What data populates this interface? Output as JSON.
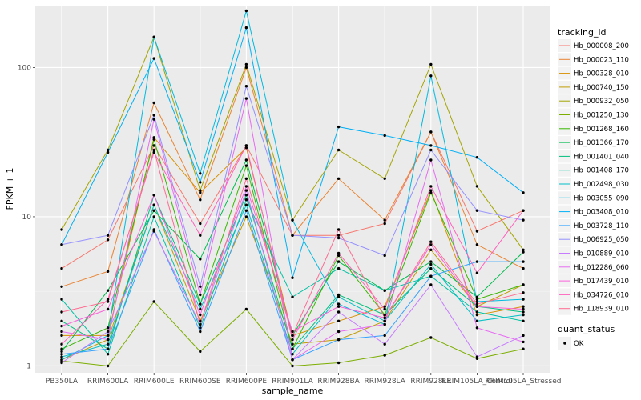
{
  "chart_data": {
    "type": "line",
    "xlabel": "sample_name",
    "ylabel": "FPKM + 1",
    "y_scale": "log10",
    "ylim": [
      0.9,
      260
    ],
    "y_ticks": [
      1,
      10,
      100
    ],
    "y_tick_labels": [
      "1",
      "10",
      "100"
    ],
    "grid": true,
    "background": "#ebebeb",
    "legend_placement": "right",
    "categories": [
      "PB350LA",
      "RRIM600LA",
      "RRIM600LE",
      "RRIM600SE",
      "RRIM600PE",
      "RRIM901LA",
      "RRIM928BA",
      "RRIM928LA",
      "RRIM928LE",
      "RRIM105LA_Control",
      "RRIM105LA_Stressed"
    ],
    "legend": {
      "title": "tracking_id",
      "items": [
        "Hb_000008_200",
        "Hb_000023_110",
        "Hb_000328_010",
        "Hb_000740_150",
        "Hb_000932_050",
        "Hb_001250_130",
        "Hb_001268_160",
        "Hb_001366_170",
        "Hb_001401_040",
        "Hb_001408_170",
        "Hb_002498_030",
        "Hb_003055_090",
        "Hb_003408_010",
        "Hb_003728_110",
        "Hb_006925_050",
        "Hb_010889_010",
        "Hb_012286_060",
        "Hb_017439_010",
        "Hb_034726_010",
        "Hb_118939_010"
      ]
    },
    "shape_legend": {
      "title": "quant_status",
      "items": [
        "OK"
      ]
    },
    "series": [
      {
        "name": "Hb_000008_200",
        "color": "#F8766D",
        "values": [
          4.5,
          7.0,
          30,
          9.0,
          30,
          7.5,
          7.5,
          9.0,
          37,
          8.0,
          11
        ]
      },
      {
        "name": "Hb_000023_110",
        "color": "#EA8331",
        "values": [
          3.4,
          4.3,
          58,
          13,
          100,
          7.5,
          18,
          9.5,
          37,
          6.5,
          4.5
        ]
      },
      {
        "name": "Hb_000328_010",
        "color": "#D89000",
        "values": [
          1.6,
          1.6,
          34,
          14.5,
          29,
          1.6,
          2.0,
          2.5,
          15,
          2.2,
          2.5
        ]
      },
      {
        "name": "Hb_000740_150",
        "color": "#C09B00",
        "values": [
          1.1,
          1.5,
          12,
          2.0,
          10,
          1.4,
          1.5,
          2.0,
          6.0,
          2.5,
          3.5
        ]
      },
      {
        "name": "Hb_000932_050",
        "color": "#A3A500",
        "values": [
          8.2,
          28,
          160,
          15,
          105,
          9.5,
          28,
          18,
          105,
          16,
          6.0
        ]
      },
      {
        "name": "Hb_001250_130",
        "color": "#7CAE00",
        "values": [
          1.08,
          1.0,
          2.7,
          1.25,
          2.4,
          1.0,
          1.05,
          1.18,
          1.55,
          1.12,
          1.3
        ]
      },
      {
        "name": "Hb_001268_160",
        "color": "#39B600",
        "values": [
          1.3,
          1.8,
          33,
          2.6,
          22,
          1.3,
          5.5,
          2.2,
          14.5,
          2.8,
          3.5
        ]
      },
      {
        "name": "Hb_001366_170",
        "color": "#00BB4E",
        "values": [
          1.25,
          3.2,
          11,
          5.2,
          24,
          1.6,
          5.0,
          3.2,
          5.0,
          2.9,
          5.8
        ]
      },
      {
        "name": "Hb_001401_040",
        "color": "#00BF7D",
        "values": [
          2.0,
          1.3,
          14,
          2.6,
          14,
          1.3,
          3.0,
          2.2,
          4.5,
          2.5,
          2.3
        ]
      },
      {
        "name": "Hb_001408_170",
        "color": "#00C1A3",
        "values": [
          2.8,
          1.2,
          10,
          1.8,
          13,
          2.9,
          4.5,
          3.2,
          4.0,
          2.3,
          2.0
        ]
      },
      {
        "name": "Hb_002498_030",
        "color": "#00BFC4",
        "values": [
          1.15,
          1.4,
          12,
          2.4,
          12,
          1.2,
          2.9,
          2.0,
          4.8,
          2.0,
          2.2
        ]
      },
      {
        "name": "Hb_003055_090",
        "color": "#00BAE0",
        "values": [
          1.1,
          1.6,
          160,
          19.5,
          240,
          9.5,
          2.6,
          1.9,
          88,
          2.7,
          2.8
        ]
      },
      {
        "name": "Hb_003408_010",
        "color": "#00B0F6",
        "values": [
          6.5,
          27,
          115,
          17,
          185,
          3.9,
          40,
          35,
          30,
          25,
          14.5
        ]
      },
      {
        "name": "Hb_003728_110",
        "color": "#35A2FF",
        "values": [
          1.2,
          1.3,
          8.2,
          1.7,
          11,
          1.1,
          1.5,
          1.6,
          4.0,
          5.0,
          5.0
        ]
      },
      {
        "name": "Hb_006925_050",
        "color": "#9590FF",
        "values": [
          6.5,
          7.5,
          48,
          3.4,
          75,
          7.5,
          7.2,
          5.5,
          28,
          11,
          9.5
        ]
      },
      {
        "name": "Hb_010889_010",
        "color": "#C77CFF",
        "values": [
          1.05,
          1.7,
          8.0,
          1.9,
          15,
          1.1,
          2.3,
          1.4,
          3.5,
          1.15,
          1.6
        ]
      },
      {
        "name": "Hb_012286_060",
        "color": "#E76BF3",
        "values": [
          1.7,
          1.5,
          45,
          3.0,
          62,
          1.1,
          1.7,
          1.9,
          24,
          1.8,
          1.45
        ]
      },
      {
        "name": "Hb_017439_010",
        "color": "#FA62DB",
        "values": [
          1.85,
          2.4,
          14,
          2.2,
          16,
          1.7,
          2.5,
          2.1,
          6.5,
          2.5,
          2.4
        ]
      },
      {
        "name": "Hb_034726_010",
        "color": "#FF62BC",
        "values": [
          1.4,
          2.8,
          27,
          7.5,
          30,
          1.5,
          5.7,
          2.4,
          16,
          4.2,
          11
        ]
      },
      {
        "name": "Hb_118939_010",
        "color": "#FF6C91",
        "values": [
          2.3,
          2.7,
          28,
          1.9,
          18,
          1.6,
          8.2,
          2.1,
          6.8,
          2.6,
          3.1
        ]
      }
    ]
  }
}
